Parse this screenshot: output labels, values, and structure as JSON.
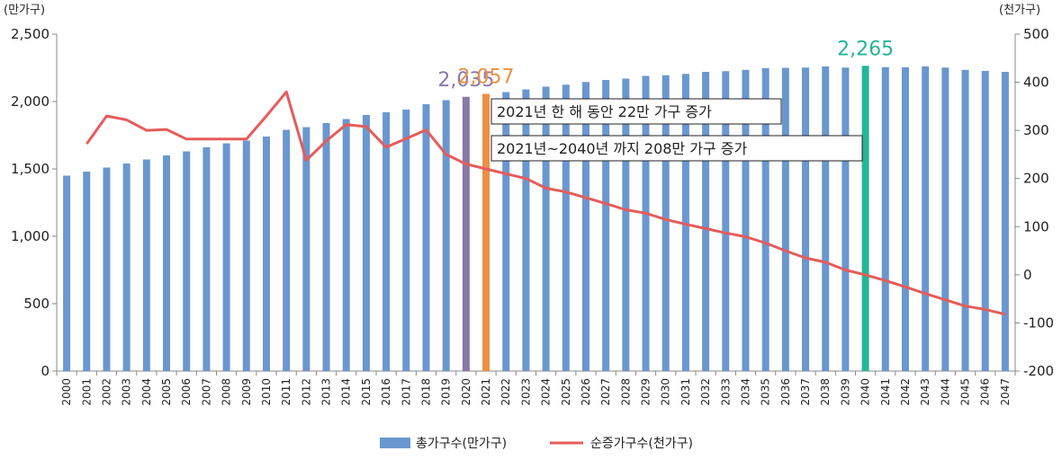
{
  "chart_data": {
    "type": "bar",
    "categories": [
      "2000",
      "2001",
      "2002",
      "2003",
      "2004",
      "2005",
      "2006",
      "2007",
      "2008",
      "2009",
      "2010",
      "2011",
      "2012",
      "2013",
      "2014",
      "2015",
      "2016",
      "2017",
      "2018",
      "2019",
      "2020",
      "2021",
      "2022",
      "2023",
      "2024",
      "2025",
      "2026",
      "2027",
      "2028",
      "2029",
      "2030",
      "2031",
      "2032",
      "2033",
      "2034",
      "2035",
      "2036",
      "2037",
      "2038",
      "2039",
      "2040",
      "2041",
      "2042",
      "2043",
      "2044",
      "2045",
      "2046",
      "2047"
    ],
    "series": [
      {
        "name": "총가구수(만가구)",
        "type": "bar",
        "axis": "left",
        "color": "#6a97cf",
        "values": [
          1450,
          1480,
          1510,
          1540,
          1570,
          1600,
          1630,
          1660,
          1690,
          1710,
          1740,
          1790,
          1810,
          1840,
          1870,
          1900,
          1920,
          1940,
          1980,
          2010,
          2035,
          2057,
          2070,
          2090,
          2110,
          2125,
          2145,
          2160,
          2170,
          2190,
          2195,
          2205,
          2220,
          2225,
          2235,
          2248,
          2250,
          2252,
          2260,
          2252,
          2265,
          2255,
          2254,
          2261,
          2252,
          2235,
          2227,
          2220
        ]
      },
      {
        "name": "순증가구수(천가구)",
        "type": "line",
        "axis": "right",
        "color": "#e55c5a",
        "values": [
          null,
          272,
          330,
          322,
          300,
          302,
          282,
          282,
          282,
          282,
          330,
          380,
          238,
          278,
          312,
          308,
          265,
          283,
          301,
          250,
          230,
          220,
          210,
          200,
          180,
          172,
          160,
          148,
          135,
          128,
          115,
          105,
          96,
          87,
          79,
          66,
          50,
          35,
          26,
          10,
          0,
          -12,
          -25,
          -39,
          -52,
          -65,
          -72,
          -82
        ]
      }
    ],
    "highlights": [
      {
        "category": "2020",
        "color": "#8b78a6",
        "label": "2,035"
      },
      {
        "category": "2021",
        "color": "#ec9045",
        "label": "2,057"
      },
      {
        "category": "2040",
        "color": "#25b597",
        "label": "2,265"
      }
    ],
    "y_left": {
      "unit": "(만가구)",
      "ylim": [
        0,
        2500
      ],
      "ticks": [
        "0",
        "500",
        "1,000",
        "1,500",
        "2,000",
        "2,500"
      ],
      "values": [
        0,
        500,
        1000,
        1500,
        2000,
        2500
      ]
    },
    "y_right": {
      "unit": "(천가구)",
      "ylim": [
        -200,
        500
      ],
      "ticks": [
        "-200",
        "-100",
        "0",
        "100",
        "200",
        "300",
        "400",
        "500"
      ],
      "values": [
        -200,
        -100,
        0,
        100,
        200,
        300,
        400,
        500
      ]
    },
    "annotations": [
      "2021년 한 해 동안 22만 가구 증가",
      "2021년~2040년 까지 208만 가구 증가"
    ],
    "legend": {
      "position": "bottom",
      "items": [
        "총가구수(만가구)",
        "순증가구수(천가구)"
      ]
    },
    "grid": false
  }
}
